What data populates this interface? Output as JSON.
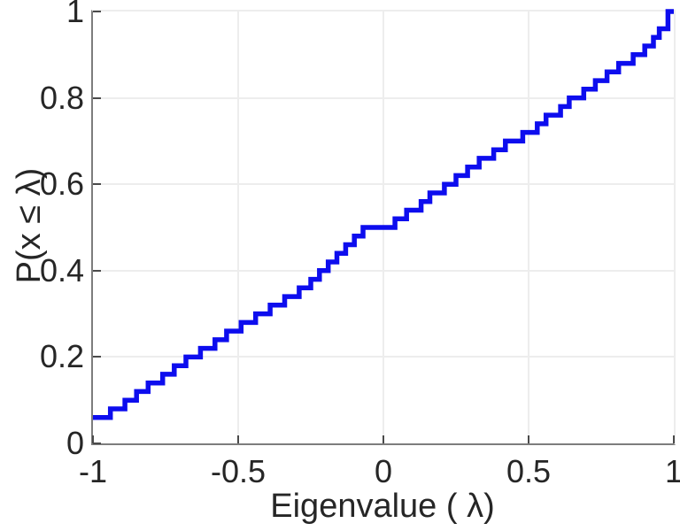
{
  "figure": {
    "background": "#ffffff",
    "axis_color": "#7d7d7d",
    "tick_color": "#4a4a4a",
    "grid_color": "#ededed",
    "label_color": "#262626"
  },
  "chart_data": {
    "type": "line",
    "subtype": "stairs-ecdf",
    "title": "",
    "xlabel": "Eigenvalue ( λ)",
    "ylabel": "P(x ≤ λ)",
    "xlim": [
      -1,
      1
    ],
    "ylim": [
      0,
      1
    ],
    "grid": true,
    "legend": "none",
    "line_color": "#0d0dee",
    "line_width": 5.5,
    "x_tick_values": [
      -1,
      -0.5,
      0,
      0.5,
      1
    ],
    "x_tick_labels": [
      "-1",
      "-0.5",
      "0",
      "0.5",
      "1"
    ],
    "y_tick_values": [
      0,
      0.2,
      0.4,
      0.6,
      0.8,
      1
    ],
    "y_tick_labels": [
      "0",
      "0.2",
      "0.4",
      "0.6",
      "0.8",
      "1"
    ],
    "n_points": 50,
    "start_probability": 0.06,
    "step_height": 0.02,
    "plateau": {
      "probability": 0.5,
      "x_from": -0.07,
      "x_to": 0.04
    },
    "eigenvalues": [
      -1,
      -1,
      -1,
      -0.94,
      -0.89,
      -0.85,
      -0.81,
      -0.76,
      -0.72,
      -0.68,
      -0.63,
      -0.58,
      -0.54,
      -0.49,
      -0.44,
      -0.39,
      -0.34,
      -0.29,
      -0.25,
      -0.22,
      -0.19,
      -0.16,
      -0.13,
      -0.1,
      -0.07,
      0.04,
      0.08,
      0.13,
      0.16,
      0.21,
      0.25,
      0.29,
      0.33,
      0.38,
      0.42,
      0.48,
      0.53,
      0.56,
      0.61,
      0.64,
      0.69,
      0.73,
      0.77,
      0.81,
      0.86,
      0.9,
      0.93,
      0.95,
      0.98,
      0.98
    ]
  }
}
